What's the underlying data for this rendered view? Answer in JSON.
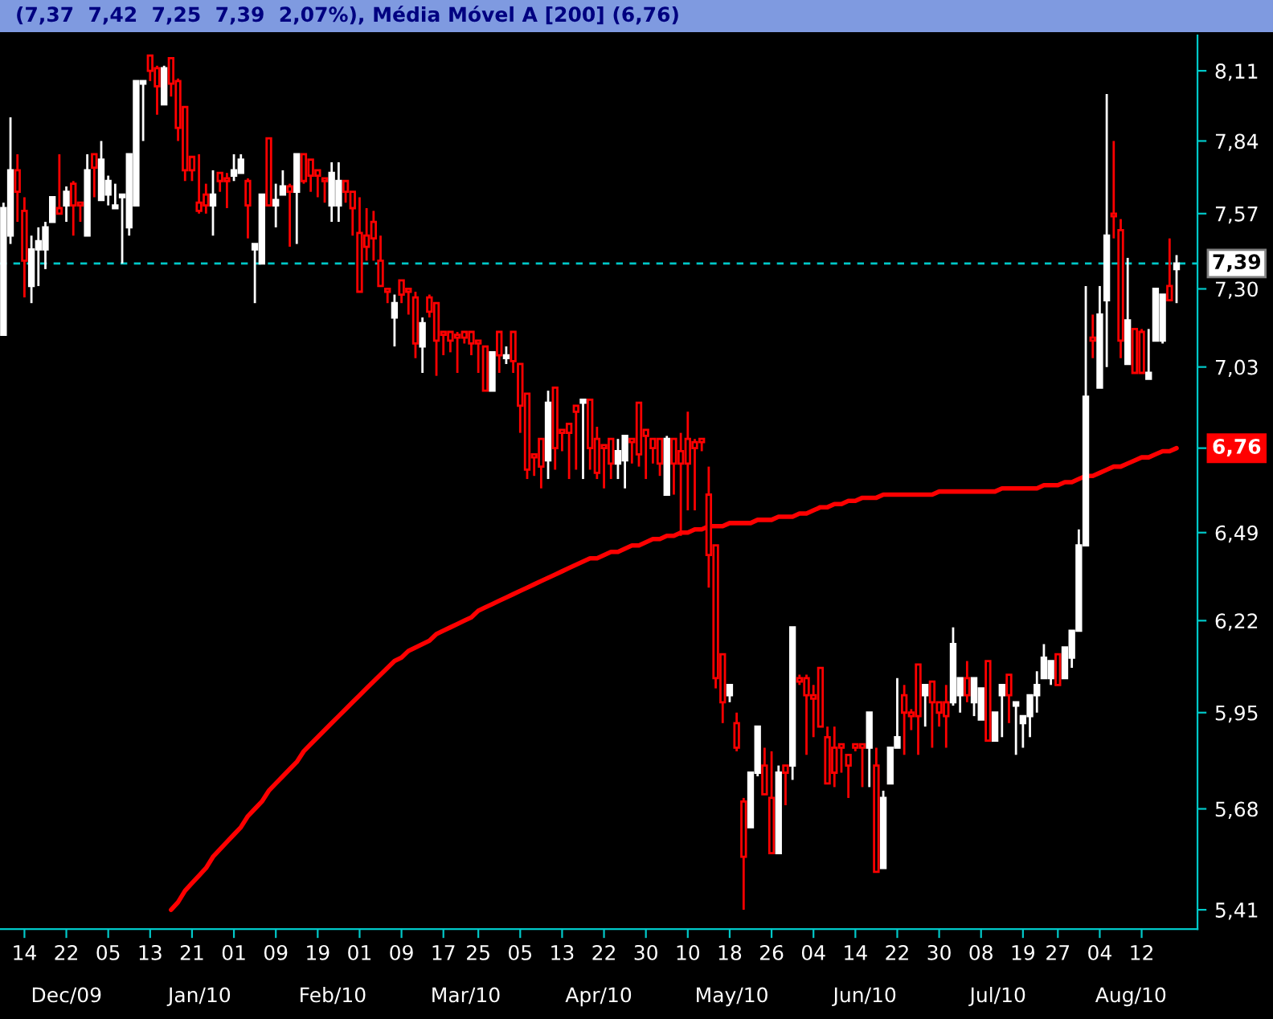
{
  "chart_data": {
    "type": "candlestick",
    "title": "(7,37  7,42  7,25  7,39  2,07%), Média Móvel A [200] (6,76)",
    "log": true,
    "grid": false,
    "ylim": [
      5.36,
      8.25
    ],
    "yticks": [
      {
        "value": 8.11,
        "label": "8,11"
      },
      {
        "value": 7.84,
        "label": "7,84"
      },
      {
        "value": 7.57,
        "label": "7,57"
      },
      {
        "value": 7.3,
        "label": "7,30"
      },
      {
        "value": 7.03,
        "label": "7,03"
      },
      {
        "value": 6.76,
        "label": null
      },
      {
        "value": 6.49,
        "label": "6,49"
      },
      {
        "value": 6.22,
        "label": "6,22"
      },
      {
        "value": 5.95,
        "label": "5,95"
      },
      {
        "value": 5.68,
        "label": "5,68"
      },
      {
        "value": 5.41,
        "label": "5,41"
      }
    ],
    "categories": [
      null,
      null,
      null,
      "14",
      null,
      null,
      null,
      null,
      null,
      "22",
      null,
      null,
      null,
      null,
      null,
      "05",
      null,
      null,
      null,
      null,
      null,
      "13",
      null,
      null,
      null,
      null,
      null,
      "21",
      null,
      null,
      null,
      null,
      null,
      "01",
      null,
      null,
      null,
      null,
      null,
      "09",
      null,
      null,
      null,
      null,
      null,
      "19",
      null,
      null,
      null,
      null,
      null,
      "01",
      null,
      null,
      null,
      null,
      null,
      "09",
      null,
      null,
      null,
      null,
      null,
      "17",
      null,
      null,
      null,
      null,
      "25",
      null,
      null,
      null,
      null,
      null,
      "05",
      null,
      null,
      null,
      null,
      null,
      "13",
      null,
      null,
      null,
      null,
      null,
      "22",
      null,
      null,
      null,
      null,
      null,
      "30",
      null,
      null,
      null,
      null,
      null,
      "10",
      null,
      null,
      null,
      null,
      null,
      "18",
      null,
      null,
      null,
      null,
      null,
      "26",
      null,
      null,
      null,
      null,
      null,
      "04",
      null,
      null,
      null,
      null,
      null,
      "14",
      null,
      null,
      null,
      null,
      null,
      "22",
      null,
      null,
      null,
      null,
      null,
      "30",
      null,
      null,
      null,
      null,
      null,
      "08",
      null,
      null,
      null,
      null,
      null,
      "19",
      null,
      null,
      null,
      null,
      "27",
      null,
      null,
      null,
      null,
      null,
      "04",
      null,
      null,
      null,
      null,
      null,
      "12",
      null,
      null,
      null,
      null,
      null
    ],
    "ref_lines": [
      {
        "axis": "y",
        "value": 7.39,
        "label": "7,39",
        "color": "#00c8c8",
        "line_style": "dashed"
      }
    ],
    "annotations": [
      "Dec/09",
      "Jan/10",
      "Feb/10",
      "Mar/10",
      "Apr/10",
      "May/10",
      "Jun/10",
      "Jul/10",
      "Aug/10"
    ],
    "series": [
      {
        "colors": [
          "#ffffff",
          "#ffffff",
          "#ff0000",
          "#ff0000",
          "#ffffff",
          "#ffffff",
          "#ffffff",
          "#ffffff",
          "#ff0000",
          "#ffffff",
          "#ff0000",
          "#ff0000",
          "#ffffff",
          "#ff0000",
          "#ffffff",
          "#ffffff",
          "#ffffff",
          "#ffffff",
          "#ffffff",
          "#ffffff",
          "#ffffff",
          "#ff0000",
          "#ff0000",
          "#ffffff",
          "#ff0000",
          "#ff0000",
          "#ff0000",
          "#ff0000",
          "#ff0000",
          "#ff0000",
          "#ffffff",
          "#ff0000",
          "#ff0000",
          "#ffffff",
          "#ffffff",
          "#ff0000",
          "#ffffff",
          "#ffffff",
          "#ff0000",
          "#ffffff",
          "#ffffff",
          "#ff0000",
          "#ffffff",
          "#ff0000",
          "#ff0000",
          "#ff0000",
          "#ff0000",
          "#ffffff",
          "#ffffff",
          "#ff0000",
          "#ff0000",
          "#ff0000",
          "#ff0000",
          "#ff0000",
          "#ff0000",
          "#ff0000",
          "#ffffff",
          "#ff0000",
          "#ff0000",
          "#ff0000",
          "#ffffff",
          "#ff0000",
          "#ff0000",
          "#ff0000",
          "#ff0000",
          "#ff0000",
          "#ff0000",
          "#ff0000",
          "#ff0000",
          "#ff0000",
          "#ffffff",
          "#ff0000",
          "#ffffff",
          "#ff0000",
          "#ff0000",
          "#ff0000",
          "#ff0000",
          "#ff0000",
          "#ffffff",
          "#ff0000",
          "#ff0000",
          "#ff0000",
          "#ff0000",
          "#ffffff",
          "#ff0000",
          "#ff0000",
          "#ff0000",
          "#ff0000",
          "#ffffff",
          "#ffffff",
          "#ff0000",
          "#ff0000",
          "#ff0000",
          "#ff0000",
          "#ff0000",
          "#ffffff",
          "#ff0000",
          "#ff0000",
          "#ff0000",
          "#ff0000",
          "#ff0000",
          "#ff0000",
          "#ff0000",
          "#ff0000",
          "#ffffff",
          "#ff0000",
          "#ff0000",
          "#ffffff",
          "#ffffff",
          "#ff0000",
          "#ff0000",
          "#ffffff",
          "#ff0000",
          "#ffffff",
          "#ff0000",
          "#ff0000",
          "#ff0000",
          "#ff0000",
          "#ff0000",
          "#ff0000",
          "#ff0000",
          "#ff0000",
          "#ff0000",
          "#ff0000",
          "#ffffff",
          "#ff0000",
          "#ffffff",
          "#ffffff",
          "#ffffff",
          "#ff0000",
          "#ff0000",
          "#ff0000",
          "#ffffff",
          "#ff0000",
          "#ff0000",
          "#ff0000",
          "#ffffff",
          "#ffffff",
          "#ff0000",
          "#ffffff",
          "#ffffff",
          "#ff0000",
          "#ffffff",
          "#ffffff",
          "#ff0000",
          "#ffffff",
          "#ffffff",
          "#ffffff",
          "#ffffff",
          "#ffffff",
          "#ffffff",
          "#ff0000",
          "#ffffff",
          "#ffffff",
          "#ffffff",
          "#ffffff",
          "#ff0000",
          "#ffffff",
          "#ffffff",
          "#ff0000",
          "#ff0000",
          "#ffffff",
          "#ff0000",
          "#ff0000",
          "#ffffff",
          "#ffffff",
          "#ffffff",
          "#ff0000",
          "#ffffff"
        ],
        "ohlc": [
          [
            7.14,
            7.61,
            7.14,
            7.59
          ],
          [
            7.49,
            7.93,
            7.46,
            7.73
          ],
          [
            7.73,
            7.79,
            7.54,
            7.65
          ],
          [
            7.58,
            7.63,
            7.27,
            7.4
          ],
          [
            7.31,
            7.49,
            7.25,
            7.44
          ],
          [
            7.44,
            7.52,
            7.31,
            7.47
          ],
          [
            7.44,
            7.54,
            7.37,
            7.52
          ],
          [
            7.54,
            7.63,
            7.54,
            7.63
          ],
          [
            7.59,
            7.79,
            7.57,
            7.57
          ],
          [
            7.6,
            7.67,
            7.54,
            7.65
          ],
          [
            7.68,
            7.69,
            7.49,
            7.6
          ],
          [
            7.61,
            7.61,
            7.54,
            7.6
          ],
          [
            7.49,
            7.79,
            7.49,
            7.73
          ],
          [
            7.79,
            7.79,
            7.63,
            7.74
          ],
          [
            7.62,
            7.84,
            7.62,
            7.77
          ],
          [
            7.64,
            7.71,
            7.6,
            7.69
          ],
          [
            7.59,
            7.68,
            7.59,
            7.6
          ],
          [
            7.63,
            7.64,
            7.39,
            7.64
          ],
          [
            7.52,
            7.79,
            7.49,
            7.79
          ],
          [
            7.6,
            8.07,
            7.6,
            8.07
          ],
          [
            8.06,
            8.07,
            7.84,
            8.07
          ],
          [
            8.17,
            8.17,
            8.07,
            8.11
          ],
          [
            8.12,
            8.13,
            7.94,
            8.05
          ],
          [
            7.98,
            8.13,
            7.98,
            8.12
          ],
          [
            8.16,
            8.16,
            8.01,
            8.06
          ],
          [
            8.07,
            8.08,
            7.84,
            7.89
          ],
          [
            7.97,
            7.97,
            7.69,
            7.73
          ],
          [
            7.78,
            7.78,
            7.69,
            7.73
          ],
          [
            7.61,
            7.79,
            7.57,
            7.58
          ],
          [
            7.64,
            7.68,
            7.57,
            7.6
          ],
          [
            7.6,
            7.73,
            7.49,
            7.64
          ],
          [
            7.72,
            7.72,
            7.65,
            7.69
          ],
          [
            7.7,
            7.72,
            7.59,
            7.69
          ],
          [
            7.71,
            7.79,
            7.69,
            7.73
          ],
          [
            7.72,
            7.79,
            7.72,
            7.77
          ],
          [
            7.69,
            7.7,
            7.48,
            7.6
          ],
          [
            7.44,
            7.46,
            7.25,
            7.46
          ],
          [
            7.39,
            7.64,
            7.39,
            7.64
          ],
          [
            7.85,
            7.85,
            7.6,
            7.6
          ],
          [
            7.6,
            7.68,
            7.52,
            7.62
          ],
          [
            7.64,
            7.73,
            7.64,
            7.67
          ],
          [
            7.67,
            7.68,
            7.45,
            7.65
          ],
          [
            7.65,
            7.79,
            7.46,
            7.79
          ],
          [
            7.79,
            7.79,
            7.68,
            7.69
          ],
          [
            7.77,
            7.77,
            7.65,
            7.71
          ],
          [
            7.73,
            7.73,
            7.63,
            7.71
          ],
          [
            7.7,
            7.7,
            7.61,
            7.69
          ],
          [
            7.6,
            7.76,
            7.54,
            7.72
          ],
          [
            7.6,
            7.76,
            7.54,
            7.69
          ],
          [
            7.69,
            7.69,
            7.61,
            7.65
          ],
          [
            7.65,
            7.65,
            7.49,
            7.59
          ],
          [
            7.5,
            7.63,
            7.29,
            7.29
          ],
          [
            7.49,
            7.59,
            7.4,
            7.45
          ],
          [
            7.54,
            7.58,
            7.4,
            7.48
          ],
          [
            7.4,
            7.49,
            7.31,
            7.31
          ],
          [
            7.3,
            7.3,
            7.25,
            7.29
          ],
          [
            7.2,
            7.28,
            7.1,
            7.25
          ],
          [
            7.33,
            7.33,
            7.25,
            7.28
          ],
          [
            7.3,
            7.3,
            7.21,
            7.29
          ],
          [
            7.27,
            7.29,
            7.06,
            7.11
          ],
          [
            7.1,
            7.2,
            7.01,
            7.18
          ],
          [
            7.27,
            7.28,
            7.2,
            7.22
          ],
          [
            7.25,
            7.25,
            7.0,
            7.12
          ],
          [
            7.15,
            7.15,
            7.07,
            7.14
          ],
          [
            7.15,
            7.15,
            7.08,
            7.12
          ],
          [
            7.14,
            7.15,
            7.01,
            7.13
          ],
          [
            7.15,
            7.15,
            7.11,
            7.13
          ],
          [
            7.15,
            7.15,
            7.07,
            7.11
          ],
          [
            7.12,
            7.12,
            7.01,
            7.11
          ],
          [
            7.1,
            7.1,
            6.95,
            6.95
          ],
          [
            6.95,
            7.08,
            6.95,
            7.08
          ],
          [
            7.15,
            7.15,
            7.01,
            7.07
          ],
          [
            7.06,
            7.1,
            7.04,
            7.07
          ],
          [
            7.15,
            7.15,
            7.01,
            7.05
          ],
          [
            7.04,
            7.04,
            6.81,
            6.9
          ],
          [
            6.94,
            6.94,
            6.66,
            6.69
          ],
          [
            6.74,
            6.74,
            6.67,
            6.73
          ],
          [
            6.79,
            6.79,
            6.63,
            6.7
          ],
          [
            6.72,
            6.95,
            6.66,
            6.91
          ],
          [
            6.96,
            6.96,
            6.69,
            6.76
          ],
          [
            6.82,
            6.82,
            6.75,
            6.81
          ],
          [
            6.84,
            6.84,
            6.66,
            6.81
          ],
          [
            6.9,
            6.9,
            6.69,
            6.88
          ],
          [
            6.91,
            6.92,
            6.66,
            6.92
          ],
          [
            6.92,
            6.92,
            6.69,
            6.76
          ],
          [
            6.79,
            6.83,
            6.66,
            6.68
          ],
          [
            6.77,
            6.77,
            6.63,
            6.76
          ],
          [
            6.79,
            6.79,
            6.66,
            6.71
          ],
          [
            6.71,
            6.79,
            6.66,
            6.75
          ],
          [
            6.72,
            6.8,
            6.63,
            6.8
          ],
          [
            6.79,
            6.79,
            6.71,
            6.78
          ],
          [
            6.91,
            6.91,
            6.7,
            6.74
          ],
          [
            6.82,
            6.82,
            6.66,
            6.8
          ],
          [
            6.79,
            6.79,
            6.71,
            6.76
          ],
          [
            6.79,
            6.79,
            6.67,
            6.71
          ],
          [
            6.61,
            6.8,
            6.61,
            6.79
          ],
          [
            6.79,
            6.79,
            6.61,
            6.71
          ],
          [
            6.75,
            6.81,
            6.48,
            6.71
          ],
          [
            6.79,
            6.88,
            6.56,
            6.71
          ],
          [
            6.78,
            6.79,
            6.56,
            6.76
          ],
          [
            6.79,
            6.79,
            6.75,
            6.78
          ],
          [
            6.61,
            6.7,
            6.32,
            6.42
          ],
          [
            6.45,
            6.45,
            6.02,
            6.05
          ],
          [
            6.12,
            6.12,
            5.92,
            5.98
          ],
          [
            6.0,
            6.03,
            5.98,
            6.03
          ],
          [
            5.92,
            5.95,
            5.84,
            5.85
          ],
          [
            5.7,
            5.71,
            5.41,
            5.55
          ],
          [
            5.63,
            5.78,
            5.63,
            5.78
          ],
          [
            5.78,
            5.91,
            5.77,
            5.91
          ],
          [
            5.8,
            5.85,
            5.72,
            5.72
          ],
          [
            5.71,
            5.84,
            5.56,
            5.56
          ],
          [
            5.56,
            5.8,
            5.56,
            5.78
          ],
          [
            5.8,
            5.8,
            5.69,
            5.78
          ],
          [
            5.8,
            6.2,
            5.76,
            6.2
          ],
          [
            6.05,
            6.06,
            6.03,
            6.04
          ],
          [
            6.05,
            6.06,
            5.83,
            6.0
          ],
          [
            6.0,
            6.03,
            5.88,
            5.99
          ],
          [
            6.08,
            6.08,
            5.91,
            5.91
          ],
          [
            5.88,
            5.91,
            5.75,
            5.75
          ],
          [
            5.85,
            5.91,
            5.74,
            5.78
          ],
          [
            5.86,
            5.86,
            5.78,
            5.85
          ],
          [
            5.83,
            5.83,
            5.71,
            5.8
          ],
          [
            5.86,
            5.86,
            5.84,
            5.85
          ],
          [
            5.86,
            5.86,
            5.74,
            5.85
          ],
          [
            5.85,
            5.95,
            5.74,
            5.95
          ],
          [
            5.8,
            5.85,
            5.51,
            5.51
          ],
          [
            5.52,
            5.73,
            5.52,
            5.71
          ],
          [
            5.75,
            5.85,
            5.75,
            5.85
          ],
          [
            5.85,
            6.05,
            5.85,
            5.88
          ],
          [
            6.0,
            6.03,
            5.83,
            5.95
          ],
          [
            5.95,
            5.96,
            5.9,
            5.94
          ],
          [
            6.09,
            6.09,
            5.83,
            5.94
          ],
          [
            6.0,
            6.03,
            5.91,
            6.03
          ],
          [
            6.04,
            6.04,
            5.85,
            5.98
          ],
          [
            5.98,
            5.98,
            5.91,
            5.95
          ],
          [
            5.98,
            6.03,
            5.85,
            5.94
          ],
          [
            5.98,
            6.2,
            5.97,
            6.15
          ],
          [
            6.0,
            6.05,
            5.95,
            6.05
          ],
          [
            6.05,
            6.1,
            5.98,
            6.0
          ],
          [
            5.98,
            6.05,
            5.94,
            6.05
          ],
          [
            5.93,
            6.02,
            5.93,
            6.02
          ],
          [
            6.1,
            6.1,
            5.87,
            5.87
          ],
          [
            5.87,
            5.95,
            5.87,
            5.95
          ],
          [
            6.0,
            6.03,
            5.88,
            6.03
          ],
          [
            6.06,
            6.06,
            5.92,
            6.0
          ],
          [
            5.97,
            5.98,
            5.83,
            5.98
          ],
          [
            5.92,
            5.94,
            5.85,
            5.94
          ],
          [
            5.94,
            6.0,
            5.88,
            6.0
          ],
          [
            6.0,
            6.07,
            5.95,
            6.03
          ],
          [
            6.05,
            6.15,
            6.05,
            6.11
          ],
          [
            6.05,
            6.1,
            6.03,
            6.1
          ],
          [
            6.12,
            6.12,
            6.03,
            6.03
          ],
          [
            6.05,
            6.14,
            6.05,
            6.14
          ],
          [
            6.11,
            6.19,
            6.08,
            6.19
          ],
          [
            6.19,
            6.5,
            6.19,
            6.45
          ],
          [
            6.45,
            7.31,
            6.45,
            6.93
          ],
          [
            7.13,
            7.21,
            7.06,
            7.12
          ],
          [
            6.96,
            7.31,
            6.96,
            7.21
          ],
          [
            7.26,
            8.02,
            7.03,
            7.49
          ],
          [
            7.57,
            7.84,
            7.48,
            7.56
          ],
          [
            7.51,
            7.55,
            7.06,
            7.12
          ],
          [
            7.04,
            7.41,
            7.04,
            7.19
          ],
          [
            7.16,
            7.16,
            7.01,
            7.01
          ],
          [
            7.15,
            7.16,
            7.01,
            7.01
          ],
          [
            6.99,
            7.16,
            6.99,
            7.01
          ],
          [
            7.12,
            7.3,
            7.12,
            7.3
          ],
          [
            7.12,
            7.28,
            7.11,
            7.28
          ],
          [
            7.31,
            7.48,
            7.26,
            7.26
          ],
          [
            7.37,
            7.42,
            7.25,
            7.39
          ]
        ]
      },
      {
        "type": "line",
        "color": "#ff0000",
        "values": [
          null,
          null,
          null,
          null,
          null,
          null,
          null,
          null,
          null,
          null,
          null,
          null,
          null,
          null,
          null,
          null,
          null,
          null,
          null,
          null,
          null,
          null,
          null,
          null,
          5.41,
          5.43,
          5.46,
          5.48,
          5.5,
          5.52,
          5.55,
          5.57,
          5.59,
          5.61,
          5.63,
          5.66,
          5.68,
          5.7,
          5.73,
          5.75,
          5.77,
          5.79,
          5.81,
          5.84,
          5.86,
          5.88,
          5.9,
          5.92,
          5.94,
          5.96,
          5.98,
          6.0,
          6.02,
          6.04,
          6.06,
          6.08,
          6.1,
          6.11,
          6.13,
          6.14,
          6.15,
          6.16,
          6.18,
          6.19,
          6.2,
          6.21,
          6.22,
          6.23,
          6.25,
          6.26,
          6.27,
          6.28,
          6.29,
          6.3,
          6.31,
          6.32,
          6.33,
          6.34,
          6.35,
          6.36,
          6.37,
          6.38,
          6.39,
          6.4,
          6.41,
          6.41,
          6.42,
          6.43,
          6.43,
          6.44,
          6.45,
          6.45,
          6.46,
          6.47,
          6.47,
          6.48,
          6.48,
          6.49,
          6.49,
          6.5,
          6.5,
          6.51,
          6.51,
          6.51,
          6.52,
          6.52,
          6.52,
          6.52,
          6.53,
          6.53,
          6.53,
          6.54,
          6.54,
          6.54,
          6.55,
          6.55,
          6.56,
          6.57,
          6.57,
          6.58,
          6.58,
          6.59,
          6.59,
          6.6,
          6.6,
          6.6,
          6.61,
          6.61,
          6.61,
          6.61,
          6.61,
          6.61,
          6.61,
          6.61,
          6.62,
          6.62,
          6.62,
          6.62,
          6.62,
          6.62,
          6.62,
          6.62,
          6.62,
          6.63,
          6.63,
          6.63,
          6.63,
          6.63,
          6.63,
          6.64,
          6.64,
          6.64,
          6.65,
          6.65,
          6.66,
          6.67,
          6.67,
          6.68,
          6.69,
          6.7,
          6.7,
          6.71,
          6.72,
          6.73,
          6.73,
          6.74,
          6.75,
          6.75,
          6.76
        ],
        "value_labels": [
          null,
          null,
          null,
          null,
          null,
          null,
          null,
          null,
          null,
          null,
          null,
          null,
          null,
          null,
          null,
          null,
          null,
          null,
          null,
          null,
          null,
          null,
          null,
          null,
          null,
          null,
          null,
          null,
          null,
          null,
          null,
          null,
          null,
          null,
          null,
          null,
          null,
          null,
          null,
          null,
          null,
          null,
          null,
          null,
          null,
          null,
          null,
          null,
          null,
          null,
          null,
          null,
          null,
          null,
          null,
          null,
          null,
          null,
          null,
          null,
          null,
          null,
          null,
          null,
          null,
          null,
          null,
          null,
          null,
          null,
          null,
          null,
          null,
          null,
          null,
          null,
          null,
          null,
          null,
          null,
          null,
          null,
          null,
          null,
          null,
          null,
          null,
          null,
          null,
          null,
          null,
          null,
          null,
          null,
          null,
          null,
          null,
          null,
          null,
          null,
          null,
          null,
          null,
          null,
          null,
          null,
          null,
          null,
          null,
          null,
          null,
          null,
          null,
          null,
          null,
          null,
          null,
          null,
          null,
          null,
          null,
          null,
          null,
          null,
          null,
          null,
          null,
          null,
          null,
          null,
          null,
          null,
          null,
          null,
          null,
          null,
          null,
          null,
          null,
          null,
          null,
          null,
          null,
          null,
          null,
          null,
          null,
          null,
          null,
          null,
          null,
          null,
          null,
          null,
          null,
          null,
          null,
          null,
          null,
          null,
          null,
          null,
          null,
          null,
          null,
          null,
          null,
          null,
          "6,76"
        ]
      }
    ]
  }
}
